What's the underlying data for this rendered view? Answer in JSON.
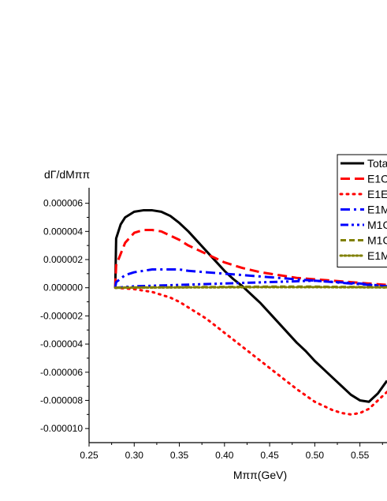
{
  "chart_data": {
    "type": "line",
    "title": "",
    "xlabel": "Mππ(GeV)",
    "ylabel": "dΓ/dMππ",
    "xlim": [
      0.25,
      0.58
    ],
    "ylim": [
      -1.1e-05,
      7.1e-06
    ],
    "x_ticks": [
      {
        "value": 0.25,
        "label": "0.25"
      },
      {
        "value": 0.3,
        "label": "0.30"
      },
      {
        "value": 0.35,
        "label": "0.35"
      },
      {
        "value": 0.4,
        "label": "0.40"
      },
      {
        "value": 0.45,
        "label": "0.45"
      },
      {
        "value": 0.5,
        "label": "0.50"
      },
      {
        "value": 0.55,
        "label": "0.55"
      }
    ],
    "y_ticks": [
      {
        "value": 6e-06,
        "label": "0.000006"
      },
      {
        "value": 4e-06,
        "label": "0.000004"
      },
      {
        "value": 2e-06,
        "label": "0.000002"
      },
      {
        "value": 0.0,
        "label": "0.000000"
      },
      {
        "value": -2e-06,
        "label": "-0.000002"
      },
      {
        "value": -4e-06,
        "label": "-0.000004"
      },
      {
        "value": -6e-06,
        "label": "-0.000006"
      },
      {
        "value": -8e-06,
        "label": "-0.000008"
      },
      {
        "value": -1e-05,
        "label": "-0.000010"
      }
    ],
    "grid": false,
    "legend_position": "top-right",
    "series": [
      {
        "name": "Tota",
        "color": "#000000",
        "dash": "solid",
        "x": [
          0.279,
          0.28,
          0.285,
          0.29,
          0.3,
          0.31,
          0.32,
          0.33,
          0.34,
          0.35,
          0.36,
          0.37,
          0.38,
          0.39,
          0.4,
          0.41,
          0.42,
          0.43,
          0.44,
          0.45,
          0.46,
          0.47,
          0.48,
          0.49,
          0.5,
          0.51,
          0.52,
          0.53,
          0.54,
          0.55,
          0.56,
          0.57,
          0.58
        ],
        "y": [
          0.0,
          3.5e-06,
          4.5e-06,
          5e-06,
          5.4e-06,
          5.5e-06,
          5.5e-06,
          5.4e-06,
          5.1e-06,
          4.6e-06,
          4e-06,
          3.3e-06,
          2.6e-06,
          1.9e-06,
          1.2e-06,
          6e-07,
          1e-07,
          -5e-07,
          -1.1e-06,
          -1.8e-06,
          -2.5e-06,
          -3.2e-06,
          -3.9e-06,
          -4.5e-06,
          -5.2e-06,
          -5.8e-06,
          -6.4e-06,
          -7e-06,
          -7.6e-06,
          -8e-06,
          -8.1e-06,
          -7.5e-06,
          -6.6e-06
        ]
      },
      {
        "name": "E1C",
        "color": "#ff0000",
        "dash": "dash",
        "x": [
          0.279,
          0.28,
          0.29,
          0.3,
          0.31,
          0.32,
          0.33,
          0.34,
          0.35,
          0.36,
          0.38,
          0.4,
          0.42,
          0.44,
          0.46,
          0.48,
          0.5,
          0.52,
          0.54,
          0.56,
          0.58
        ],
        "y": [
          0.0,
          1.6e-06,
          3.2e-06,
          3.9e-06,
          4.1e-06,
          4.1e-06,
          4e-06,
          3.7e-06,
          3.4e-06,
          3e-06,
          2.4e-06,
          1.8e-06,
          1.4e-06,
          1.1e-06,
          9e-07,
          7e-07,
          6e-07,
          5e-07,
          4e-07,
          3e-07,
          2e-07
        ]
      },
      {
        "name": "E1E",
        "color": "#ff0000",
        "dash": "dot",
        "x": [
          0.279,
          0.28,
          0.29,
          0.3,
          0.31,
          0.32,
          0.33,
          0.34,
          0.35,
          0.36,
          0.38,
          0.4,
          0.42,
          0.44,
          0.46,
          0.48,
          0.5,
          0.52,
          0.53,
          0.54,
          0.55,
          0.56,
          0.57,
          0.58
        ],
        "y": [
          0.0,
          0.0,
          -5e-08,
          -1e-07,
          -2e-07,
          -3e-07,
          -5e-07,
          -7e-07,
          -1e-06,
          -1.4e-06,
          -2.2e-06,
          -3.2e-06,
          -4.2e-06,
          -5.2e-06,
          -6.2e-06,
          -7.2e-06,
          -8.1e-06,
          -8.7e-06,
          -8.9e-06,
          -9e-06,
          -8.9e-06,
          -8.6e-06,
          -8e-06,
          -7.4e-06
        ]
      },
      {
        "name": "E1M",
        "color": "#0000ff",
        "dash": "dashdot",
        "x": [
          0.279,
          0.28,
          0.29,
          0.3,
          0.31,
          0.32,
          0.33,
          0.34,
          0.35,
          0.36,
          0.38,
          0.4,
          0.42,
          0.44,
          0.46,
          0.48,
          0.5,
          0.52,
          0.54,
          0.56,
          0.58
        ],
        "y": [
          0.0,
          4e-07,
          9e-07,
          1.1e-06,
          1.2e-06,
          1.3e-06,
          1.3e-06,
          1.3e-06,
          1.3e-06,
          1.2e-06,
          1.1e-06,
          1e-06,
          9e-07,
          8e-07,
          7e-07,
          6e-07,
          5e-07,
          4e-07,
          3e-07,
          2e-07,
          1e-07
        ]
      },
      {
        "name": "M1C",
        "color": "#0000ff",
        "dash": "dashdotdot",
        "x": [
          0.279,
          0.3,
          0.35,
          0.4,
          0.45,
          0.5,
          0.55,
          0.58
        ],
        "y": [
          0.0,
          1e-07,
          2e-07,
          3e-07,
          4e-07,
          5e-07,
          3e-07,
          1e-07
        ]
      },
      {
        "name": "M1C",
        "color": "#808000",
        "dash": "shortdash",
        "x": [
          0.279,
          0.3,
          0.35,
          0.4,
          0.45,
          0.5,
          0.55,
          0.58
        ],
        "y": [
          0.0,
          2e-08,
          4e-08,
          6e-08,
          8e-08,
          8e-08,
          5e-08,
          3e-08
        ]
      },
      {
        "name": "E1M",
        "color": "#808000",
        "dash": "shortdot",
        "x": [
          0.279,
          0.3,
          0.35,
          0.4,
          0.45,
          0.5,
          0.55,
          0.58
        ],
        "y": [
          0.0,
          1e-08,
          2e-08,
          3e-08,
          4e-08,
          4e-08,
          3e-08,
          2e-08
        ]
      }
    ]
  }
}
